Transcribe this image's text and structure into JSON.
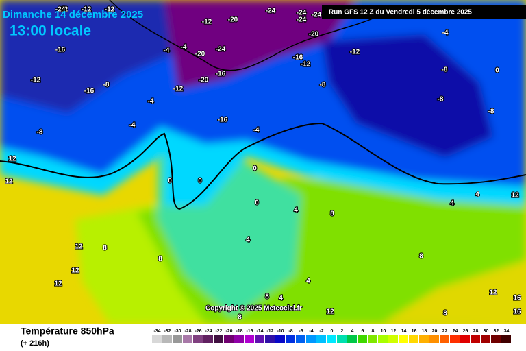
{
  "header": {
    "date": "Dimanche 14 décembre 2025",
    "time": "13:00 locale",
    "run": "Run GFS 12 Z du Vendredi 5 décembre 2025"
  },
  "map": {
    "labels": [
      -24,
      -24,
      -24,
      -24,
      -20,
      -12,
      -20,
      -12,
      -12,
      -12,
      -24,
      -16,
      -12,
      -16,
      -8,
      -4,
      -4,
      -20,
      -24,
      -16,
      -20,
      -12,
      -12,
      -16,
      -12,
      -8,
      -4,
      -4,
      -8,
      -16,
      -4,
      -8,
      -8,
      -8,
      -4,
      0,
      0,
      0,
      0,
      0,
      4,
      4,
      8,
      8,
      12,
      12,
      12,
      12,
      12,
      8,
      8,
      4,
      8,
      12,
      8,
      12,
      16,
      16,
      4,
      4,
      12,
      8,
      4
    ]
  },
  "footer": {
    "copyright": "Copyright © 2025 Meteociel.fr",
    "title": "Température 850hPa",
    "lead": "(+ 216h)"
  },
  "scale": {
    "values": [
      -34,
      -32,
      -30,
      -28,
      -26,
      -24,
      -22,
      -20,
      -18,
      -16,
      -14,
      -12,
      -10,
      -8,
      -6,
      -4,
      -2,
      0,
      2,
      4,
      6,
      8,
      10,
      12,
      14,
      16,
      18,
      20,
      22,
      24,
      26,
      28,
      30,
      32,
      34
    ],
    "colors": [
      "#d8d8d8",
      "#b8b8b8",
      "#989898",
      "#a878a8",
      "#804080",
      "#602060",
      "#401040",
      "#700070",
      "#9000a8",
      "#b000d0",
      "#6010b0",
      "#3010a8",
      "#0808c8",
      "#0030e0",
      "#0060f0",
      "#0098ff",
      "#00c0ff",
      "#00e8ff",
      "#00e0b0",
      "#00c848",
      "#40d800",
      "#80e800",
      "#a8ff00",
      "#d0ff00",
      "#ffff00",
      "#ffd800",
      "#ffb000",
      "#ff9000",
      "#ff6000",
      "#ff3000",
      "#e00000",
      "#c00000",
      "#a00000",
      "#700000",
      "#400000"
    ]
  }
}
